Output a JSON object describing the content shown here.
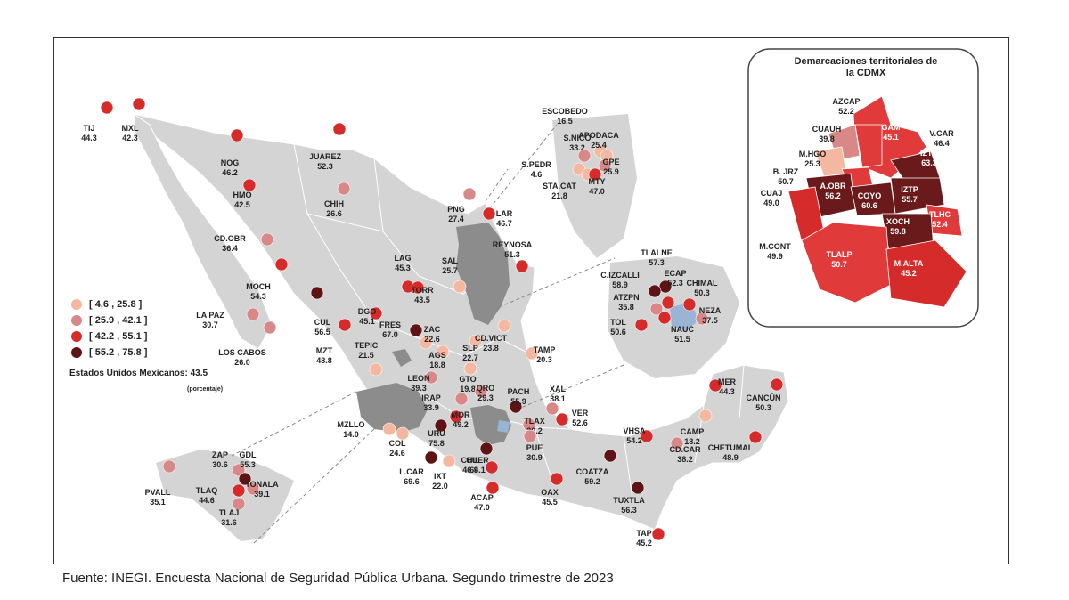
{
  "legend": [
    {
      "label": "[   4.6 , 25.8 ]",
      "color": "#f4b8a0"
    },
    {
      "label": "[ 25.9 , 42.1 ]",
      "color": "#d98888"
    },
    {
      "label": "[ 42.2 , 55.1 ]",
      "color": "#d62b2b"
    },
    {
      "label": "[ 55.2 , 75.8 ]",
      "color": "#5e1414"
    }
  ],
  "national": {
    "label": "Estados Unidos Mexicanos:",
    "value": "43.5",
    "unit": "(porcentaje)"
  },
  "inset": {
    "title_line1": "Demarcaciones territoriales de",
    "title_line2": "la CDMX"
  },
  "source": "Fuente: INEGI. Encuesta Nacional de Seguridad Pública Urbana. Segundo trimestre de 2023",
  "cities": [
    {
      "name": "TIJ",
      "value": "44.3",
      "cls": 3
    },
    {
      "name": "MXL",
      "value": "42.3",
      "cls": 3
    },
    {
      "name": "NOG",
      "value": "46.2",
      "cls": 3
    },
    {
      "name": "JUAREZ",
      "value": "52.3",
      "cls": 3
    },
    {
      "name": "HMO",
      "value": "42.5",
      "cls": 3
    },
    {
      "name": "CHIH",
      "value": "26.6",
      "cls": 2
    },
    {
      "name": "CD.OBR",
      "value": "36.4",
      "cls": 2
    },
    {
      "name": "MOCH",
      "value": "54.3",
      "cls": 3
    },
    {
      "name": "CUL",
      "value": "56.5",
      "cls": 4
    },
    {
      "name": "LA PAZ",
      "value": "30.7",
      "cls": 2
    },
    {
      "name": "LOS CABOS",
      "value": "26.0",
      "cls": 2
    },
    {
      "name": "MZT",
      "value": "48.8",
      "cls": 3
    },
    {
      "name": "DGO",
      "value": "45.1",
      "cls": 3
    },
    {
      "name": "LAG",
      "value": "45.3",
      "cls": 3
    },
    {
      "name": "TORR",
      "value": "43.5",
      "cls": 3
    },
    {
      "name": "SAL",
      "value": "25.7",
      "cls": 1
    },
    {
      "name": "PNG",
      "value": "27.4",
      "cls": 2
    },
    {
      "name": "LAR",
      "value": "46.7",
      "cls": 3
    },
    {
      "name": "REYNOSA",
      "value": "51.3",
      "cls": 3
    },
    {
      "name": "TEPIC",
      "value": "21.5",
      "cls": 1
    },
    {
      "name": "FRES",
      "value": "67.0",
      "cls": 4
    },
    {
      "name": "ZAC",
      "value": "22.6",
      "cls": 1
    },
    {
      "name": "SLP",
      "value": "22.7",
      "cls": 1
    },
    {
      "name": "AGS",
      "value": "18.8",
      "cls": 1
    },
    {
      "name": "CD.VICT",
      "value": "23.8",
      "cls": 1
    },
    {
      "name": "TAMP",
      "value": "20.3",
      "cls": 1
    },
    {
      "name": "LEON",
      "value": "39.3",
      "cls": 2
    },
    {
      "name": "GTO",
      "value": "19.8",
      "cls": 1
    },
    {
      "name": "IRAP",
      "value": "33.9",
      "cls": 2
    },
    {
      "name": "QRO",
      "value": "29.3",
      "cls": 2
    },
    {
      "name": "PACH",
      "value": "55.9",
      "cls": 4
    },
    {
      "name": "XAL",
      "value": "38.1",
      "cls": 2
    },
    {
      "name": "MOR",
      "value": "49.2",
      "cls": 3
    },
    {
      "name": "URU",
      "value": "75.8",
      "cls": 4
    },
    {
      "name": "TLAX",
      "value": "30.2",
      "cls": 2
    },
    {
      "name": "VER",
      "value": "52.6",
      "cls": 3
    },
    {
      "name": "MZLLO",
      "value": "14.0",
      "cls": 1
    },
    {
      "name": "COL",
      "value": "24.6",
      "cls": 1
    },
    {
      "name": "CUER",
      "value": "64.1",
      "cls": 4
    },
    {
      "name": "PUE",
      "value": "30.9",
      "cls": 2
    },
    {
      "name": "L.CAR",
      "value": "69.6",
      "cls": 4
    },
    {
      "name": "IXT",
      "value": "22.0",
      "cls": 1
    },
    {
      "name": "CHIL",
      "value": "46.9",
      "cls": 3
    },
    {
      "name": "ACAP",
      "value": "47.0",
      "cls": 3
    },
    {
      "name": "OAX",
      "value": "45.5",
      "cls": 3
    },
    {
      "name": "COATZA",
      "value": "59.2",
      "cls": 4
    },
    {
      "name": "TUXTLA",
      "value": "56.3",
      "cls": 4
    },
    {
      "name": "TAP",
      "value": "45.2",
      "cls": 3
    },
    {
      "name": "VHSA",
      "value": "54.2",
      "cls": 3
    },
    {
      "name": "CD.CAR",
      "value": "38.2",
      "cls": 2
    },
    {
      "name": "CAMP",
      "value": "18.2",
      "cls": 1
    },
    {
      "name": "MER",
      "value": "44.3",
      "cls": 3
    },
    {
      "name": "CANCÚN",
      "value": "50.3",
      "cls": 3
    },
    {
      "name": "CHETUMAL",
      "value": "48.9",
      "cls": 3
    },
    {
      "name": "ZAP",
      "value": "30.6",
      "cls": 2
    },
    {
      "name": "GDL",
      "value": "55.3",
      "cls": 4
    },
    {
      "name": "TONALA",
      "value": "39.1",
      "cls": 2
    },
    {
      "name": "TLAQ",
      "value": "44.6",
      "cls": 3
    },
    {
      "name": "TLAJ",
      "value": "31.6",
      "cls": 2
    },
    {
      "name": "PVALL",
      "value": "35.1",
      "cls": 2
    },
    {
      "name": "ESCOBEDO",
      "value": "16.5",
      "cls": 1
    },
    {
      "name": "S.NICO",
      "value": "33.2",
      "cls": 2
    },
    {
      "name": "APODACA",
      "value": "25.4",
      "cls": 1
    },
    {
      "name": "S.PEDR",
      "value": "4.6",
      "cls": 1
    },
    {
      "name": "GPE",
      "value": "25.9",
      "cls": 2
    },
    {
      "name": "STA.CAT",
      "value": "21.8",
      "cls": 1
    },
    {
      "name": "MTY",
      "value": "47.0",
      "cls": 3
    },
    {
      "name": "TLALNE",
      "value": "57.3",
      "cls": 4
    },
    {
      "name": "C.IZCALLI",
      "value": "58.9",
      "cls": 4
    },
    {
      "name": "ECAP",
      "value": "52.3",
      "cls": 3
    },
    {
      "name": "CHIMAL",
      "value": "50.3",
      "cls": 3
    },
    {
      "name": "ATZPN",
      "value": "35.8",
      "cls": 2
    },
    {
      "name": "NEZA",
      "value": "37.5",
      "cls": 2
    },
    {
      "name": "TOL",
      "value": "50.6",
      "cls": 3
    },
    {
      "name": "NAUC",
      "value": "51.5",
      "cls": 3
    }
  ],
  "cdmx": [
    {
      "name": "AZCAP",
      "value": "52.2",
      "cls": 3
    },
    {
      "name": "CUAUH",
      "value": "39.8",
      "cls": 2
    },
    {
      "name": "GAM",
      "value": "45.1",
      "cls": 3
    },
    {
      "name": "V.CAR",
      "value": "46.4",
      "cls": 3
    },
    {
      "name": "M.HGO",
      "value": "25.3",
      "cls": 1
    },
    {
      "name": "IZTC",
      "value": "63.3",
      "cls": 4
    },
    {
      "name": "B. JRZ",
      "value": "50.7",
      "cls": 3
    },
    {
      "name": "A.OBR",
      "value": "56.2",
      "cls": 4
    },
    {
      "name": "COYO",
      "value": "60.6",
      "cls": 4
    },
    {
      "name": "IZTP",
      "value": "55.7",
      "cls": 4
    },
    {
      "name": "CUAJ",
      "value": "49.0",
      "cls": 3
    },
    {
      "name": "TLHC",
      "value": "52.4",
      "cls": 3
    },
    {
      "name": "XOCH",
      "value": "59.8",
      "cls": 4
    },
    {
      "name": "M.CONT",
      "value": "49.9",
      "cls": 3
    },
    {
      "name": "TLALP",
      "value": "50.7",
      "cls": 3
    },
    {
      "name": "M.ALTA",
      "value": "45.2",
      "cls": 3
    }
  ]
}
